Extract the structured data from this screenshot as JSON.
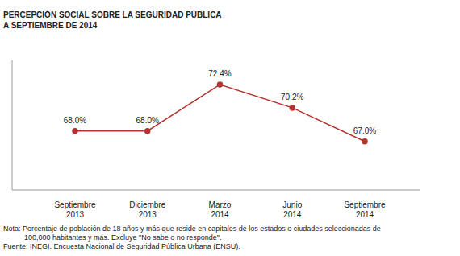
{
  "chart_data": {
    "type": "line",
    "title": "PERCEPCIÓN SOCIAL SOBRE LA SEGURIDAD PÚBLICA",
    "subtitle": "A SEPTIEMBRE DE 2014",
    "categories": [
      "Septiembre 2013",
      "Diciembre 2013",
      "Marzo 2014",
      "Junio 2014",
      "Septiembre 2014"
    ],
    "values": [
      68.0,
      68.0,
      72.4,
      70.2,
      67.0
    ],
    "value_labels": [
      "68.0%",
      "68.0%",
      "72.4%",
      "70.2%",
      "67.0%"
    ],
    "color": "#b5332e",
    "marker": "circle",
    "line_style": "solid",
    "data_labels": true,
    "tick_labels": "x",
    "grid": false,
    "ylim": [
      62.4,
      74.7
    ],
    "note": "Nota: Porcentaje de población de 18 años y más que reside en capitales de los estados o ciudades seleccionadas de 100,000 habitantes y más. Excluye \"No sabe o no responde\".",
    "source": "Fuente: INEGI. Encuesta Nacional de Seguridad Pública Urbana (ENSU)."
  }
}
